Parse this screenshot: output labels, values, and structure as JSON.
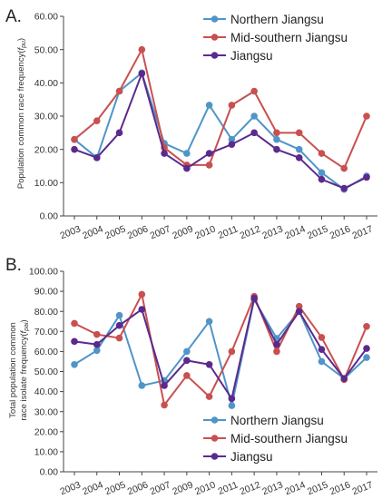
{
  "chart_data": [
    {
      "panel": "A.",
      "type": "line",
      "ylabel_parts": [
        "Population common race frequency(",
        "f",
        "pu",
        ")"
      ],
      "yticks": [
        "0.00",
        "10.00",
        "20.00",
        "30.00",
        "40.00",
        "50.00",
        "60.00"
      ],
      "ylim": [
        0,
        60
      ],
      "categories": [
        "2003",
        "2004",
        "2005",
        "2006",
        "2007",
        "2009",
        "2010",
        "2011",
        "2012",
        "2013",
        "2014",
        "2015",
        "2016",
        "2017"
      ],
      "legend_position": "top-right",
      "grid": false,
      "series": [
        {
          "name": "Northern Jiangsu",
          "color": "#4f95c8",
          "values": [
            23.0,
            17.5,
            37.5,
            43.0,
            21.8,
            18.8,
            33.3,
            23.0,
            30.0,
            23.0,
            20.0,
            13.0,
            8.0,
            12.0
          ]
        },
        {
          "name": "Mid-southern Jiangsu",
          "color": "#c8504f",
          "values": [
            23.0,
            28.6,
            37.5,
            50.0,
            20.5,
            15.3,
            15.3,
            33.3,
            37.5,
            25.0,
            25.0,
            18.8,
            14.3,
            30.0
          ]
        },
        {
          "name": "Jiangsu",
          "color": "#5b2a8c",
          "values": [
            20.0,
            17.5,
            25.0,
            42.8,
            18.8,
            14.3,
            18.8,
            21.5,
            25.0,
            20.0,
            17.5,
            11.0,
            8.3,
            11.6
          ]
        }
      ]
    },
    {
      "panel": "B.",
      "type": "line",
      "ylabel_line1": "Total population common",
      "ylabel_parts": [
        "race isolate frequency(",
        "f",
        "pai",
        ")"
      ],
      "yticks": [
        "0.00",
        "10.00",
        "20.00",
        "30.00",
        "40.00",
        "50.00",
        "60.00",
        "70.00",
        "80.00",
        "90.00",
        "100.00"
      ],
      "ylim": [
        0,
        100
      ],
      "categories": [
        "2003",
        "2004",
        "2005",
        "2006",
        "2007",
        "2009",
        "2010",
        "2011",
        "2012",
        "2013",
        "2014",
        "2015",
        "2016",
        "2017"
      ],
      "legend_position": "bottom-right",
      "grid": false,
      "series": [
        {
          "name": "Northern Jiangsu",
          "color": "#4f95c8",
          "values": [
            53.5,
            60.5,
            78.0,
            43.0,
            45.5,
            60.0,
            75.0,
            33.0,
            86.0,
            66.5,
            80.0,
            55.0,
            46.5,
            57.0
          ]
        },
        {
          "name": "Mid-southern Jiangsu",
          "color": "#c8504f",
          "values": [
            74.0,
            68.5,
            66.7,
            88.5,
            33.3,
            48.0,
            37.5,
            60.0,
            87.5,
            60.0,
            82.5,
            67.0,
            46.0,
            72.5
          ]
        },
        {
          "name": "Jiangsu",
          "color": "#5b2a8c",
          "values": [
            65.0,
            63.5,
            73.0,
            81.0,
            43.0,
            55.5,
            53.5,
            36.5,
            86.5,
            63.5,
            80.0,
            61.0,
            46.5,
            61.5
          ]
        }
      ]
    }
  ]
}
